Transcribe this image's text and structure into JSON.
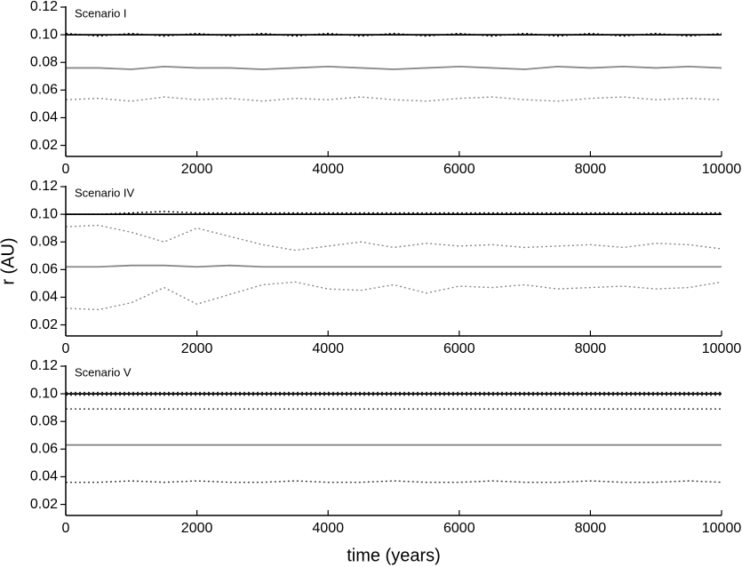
{
  "chart_data": [
    {
      "type": "line",
      "annotation": "Scenario I",
      "x": [
        0,
        500,
        1000,
        1500,
        2000,
        2500,
        3000,
        3500,
        4000,
        4500,
        5000,
        5500,
        6000,
        6500,
        7000,
        7500,
        8000,
        8500,
        9000,
        9500,
        10000
      ],
      "xlim": [
        0,
        10000
      ],
      "xticks": [
        0,
        2000,
        4000,
        6000,
        8000,
        10000
      ],
      "ylim": [
        0.012,
        0.12
      ],
      "yticks": [
        0.02,
        0.04,
        0.06,
        0.08,
        {
          "value": 0.1,
          "label": "0.10"
        },
        0.12
      ],
      "series": [
        {
          "color": "#000000",
          "style": "solid",
          "values": [
            0.1,
            0.1,
            0.1,
            0.1,
            0.1,
            0.1,
            0.1,
            0.1,
            0.1,
            0.1,
            0.1,
            0.1,
            0.1,
            0.1,
            0.1,
            0.1,
            0.1,
            0.1,
            0.1,
            0.1,
            0.1
          ]
        },
        {
          "color": "#000000",
          "style": "dotted",
          "values": [
            0.101,
            0.099,
            0.101,
            0.099,
            0.101,
            0.099,
            0.101,
            0.099,
            0.101,
            0.099,
            0.101,
            0.099,
            0.101,
            0.099,
            0.101,
            0.099,
            0.101,
            0.099,
            0.101,
            0.099,
            0.101
          ]
        },
        {
          "color": "#888888",
          "style": "solid",
          "values": [
            0.076,
            0.076,
            0.075,
            0.077,
            0.076,
            0.076,
            0.075,
            0.076,
            0.077,
            0.076,
            0.075,
            0.076,
            0.077,
            0.076,
            0.075,
            0.077,
            0.076,
            0.077,
            0.076,
            0.077,
            0.076
          ]
        },
        {
          "color": "#888888",
          "style": "dotted",
          "values": [
            0.053,
            0.054,
            0.052,
            0.055,
            0.053,
            0.054,
            0.052,
            0.054,
            0.053,
            0.055,
            0.053,
            0.052,
            0.054,
            0.055,
            0.053,
            0.052,
            0.054,
            0.055,
            0.053,
            0.054,
            0.053
          ]
        }
      ]
    },
    {
      "type": "line",
      "annotation": "Scenario IV",
      "ylabel": "r (AU)",
      "x": [
        0,
        500,
        1000,
        1500,
        2000,
        2500,
        3000,
        3500,
        4000,
        4500,
        5000,
        5500,
        6000,
        6500,
        7000,
        7500,
        8000,
        8500,
        9000,
        9500,
        10000
      ],
      "xlim": [
        0,
        10000
      ],
      "xticks": [
        0,
        2000,
        4000,
        6000,
        8000,
        10000
      ],
      "ylim": [
        0.012,
        0.12
      ],
      "yticks": [
        0.02,
        0.04,
        0.06,
        0.08,
        {
          "value": 0.1,
          "label": "0.10"
        },
        0.12
      ],
      "series": [
        {
          "color": "#000000",
          "style": "solid",
          "values": [
            0.1,
            0.1,
            0.1,
            0.1,
            0.1,
            0.1,
            0.1,
            0.1,
            0.1,
            0.1,
            0.1,
            0.1,
            0.1,
            0.1,
            0.1,
            0.1,
            0.1,
            0.1,
            0.1,
            0.1,
            0.1
          ]
        },
        {
          "color": "#000000",
          "style": "dotted",
          "values": [
            0.1,
            0.1,
            0.101,
            0.102,
            0.101,
            0.101,
            0.101,
            0.101,
            0.101,
            0.101,
            0.101,
            0.101,
            0.101,
            0.101,
            0.101,
            0.101,
            0.101,
            0.101,
            0.101,
            0.101,
            0.101
          ]
        },
        {
          "color": "#888888",
          "style": "dotted",
          "values": [
            0.091,
            0.092,
            0.087,
            0.08,
            0.09,
            0.084,
            0.078,
            0.074,
            0.077,
            0.08,
            0.076,
            0.079,
            0.077,
            0.078,
            0.076,
            0.077,
            0.078,
            0.076,
            0.079,
            0.078,
            0.075
          ]
        },
        {
          "color": "#888888",
          "style": "solid",
          "values": [
            0.062,
            0.062,
            0.063,
            0.063,
            0.062,
            0.063,
            0.062,
            0.062,
            0.062,
            0.062,
            0.062,
            0.062,
            0.062,
            0.062,
            0.062,
            0.062,
            0.062,
            0.062,
            0.062,
            0.062,
            0.062
          ]
        },
        {
          "color": "#888888",
          "style": "dotted",
          "values": [
            0.032,
            0.031,
            0.036,
            0.047,
            0.035,
            0.042,
            0.049,
            0.051,
            0.046,
            0.045,
            0.049,
            0.043,
            0.048,
            0.047,
            0.049,
            0.046,
            0.047,
            0.048,
            0.046,
            0.047,
            0.051
          ]
        }
      ]
    },
    {
      "type": "line",
      "annotation": "Scenario V",
      "xlabel": "time (years)",
      "x": [
        0,
        500,
        1000,
        1500,
        2000,
        2500,
        3000,
        3500,
        4000,
        4500,
        5000,
        5500,
        6000,
        6500,
        7000,
        7500,
        8000,
        8500,
        9000,
        9500,
        10000
      ],
      "xlim": [
        0,
        10000
      ],
      "xticks": [
        0,
        2000,
        4000,
        6000,
        8000,
        10000
      ],
      "ylim": [
        0.012,
        0.12
      ],
      "yticks": [
        0.02,
        0.04,
        0.06,
        0.08,
        {
          "value": 0.1,
          "label": "0.10"
        },
        0.12
      ],
      "series": [
        {
          "color": "#000000",
          "style": "solid",
          "values": [
            0.1,
            0.1,
            0.1,
            0.1,
            0.1,
            0.1,
            0.1,
            0.1,
            0.1,
            0.1,
            0.1,
            0.1,
            0.1,
            0.1,
            0.1,
            0.1,
            0.1,
            0.1,
            0.1,
            0.1,
            0.1
          ]
        },
        {
          "color": "#333333",
          "style": "dotted",
          "values": [
            0.101,
            0.101,
            0.101,
            0.101,
            0.101,
            0.101,
            0.101,
            0.101,
            0.101,
            0.101,
            0.101,
            0.101,
            0.101,
            0.101,
            0.101,
            0.101,
            0.101,
            0.101,
            0.101,
            0.101,
            0.101
          ]
        },
        {
          "color": "#333333",
          "style": "dotted",
          "values": [
            0.099,
            0.099,
            0.099,
            0.099,
            0.099,
            0.099,
            0.099,
            0.099,
            0.099,
            0.099,
            0.099,
            0.099,
            0.099,
            0.099,
            0.099,
            0.099,
            0.099,
            0.099,
            0.099,
            0.099,
            0.099
          ]
        },
        {
          "color": "#333333",
          "style": "dotted",
          "values": [
            0.089,
            0.089,
            0.089,
            0.089,
            0.089,
            0.089,
            0.089,
            0.089,
            0.089,
            0.089,
            0.089,
            0.089,
            0.089,
            0.089,
            0.089,
            0.089,
            0.089,
            0.089,
            0.089,
            0.089,
            0.089
          ]
        },
        {
          "color": "#888888",
          "style": "solid",
          "values": [
            0.063,
            0.063,
            0.063,
            0.063,
            0.063,
            0.063,
            0.063,
            0.063,
            0.063,
            0.063,
            0.063,
            0.063,
            0.063,
            0.063,
            0.063,
            0.063,
            0.063,
            0.063,
            0.063,
            0.063,
            0.063
          ]
        },
        {
          "color": "#333333",
          "style": "dotted",
          "values": [
            0.036,
            0.036,
            0.037,
            0.036,
            0.037,
            0.036,
            0.036,
            0.037,
            0.036,
            0.036,
            0.037,
            0.036,
            0.036,
            0.037,
            0.036,
            0.036,
            0.037,
            0.036,
            0.036,
            0.037,
            0.036
          ]
        }
      ]
    }
  ]
}
